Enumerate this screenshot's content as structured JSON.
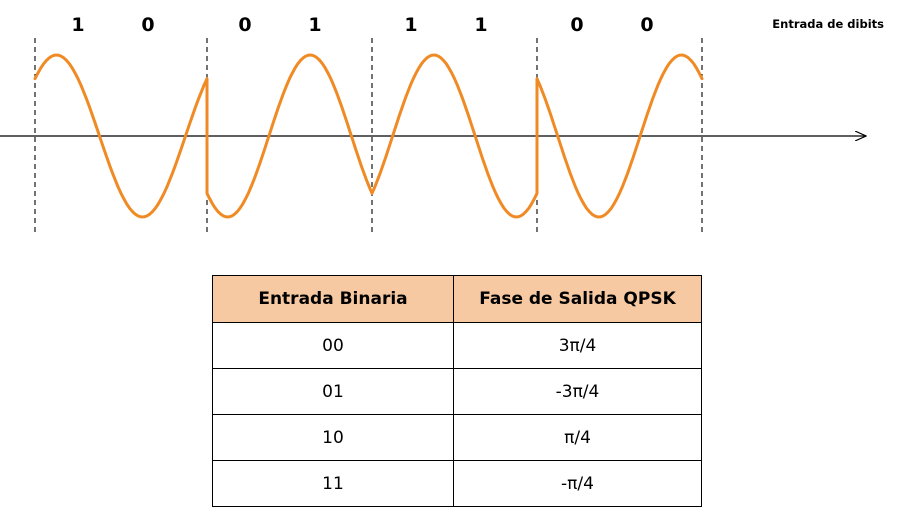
{
  "diagram": {
    "caption": "Entrada de dibits",
    "bits": [
      "1",
      "0",
      "0",
      "1",
      "1",
      "1",
      "0",
      "0"
    ],
    "wave_color": "#f08a24"
  },
  "table": {
    "headers": [
      "Entrada Binaria",
      "Fase de Salida QPSK"
    ],
    "rows": [
      [
        "00",
        "3π/4"
      ],
      [
        "01",
        "-3π/4"
      ],
      [
        "10",
        "π/4"
      ],
      [
        "11",
        "-π/4"
      ]
    ],
    "header_bg": "#f7c9a2"
  }
}
